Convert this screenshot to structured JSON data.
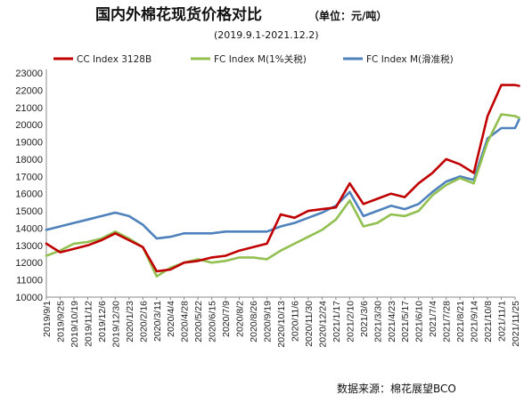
{
  "chart_data": {
    "type": "line",
    "title": "国内外棉花现货价格对比",
    "unit_label": "（单位：元/吨）",
    "subtitle": "(2019.9.1-2021.12.2)",
    "source": "数据来源：棉花展望BCO",
    "xlabel": "",
    "ylabel": "",
    "ylim": [
      10000,
      23000
    ],
    "yticks": [
      10000,
      11000,
      12000,
      13000,
      14000,
      15000,
      16000,
      17000,
      18000,
      19000,
      20000,
      21000,
      22000,
      23000
    ],
    "x_labels": [
      "2019/9/1",
      "2019/9/25",
      "2019/10/19",
      "2019/11/12",
      "2019/12/6",
      "2019/12/30",
      "2020/1/23",
      "2020/2/16",
      "2020/3/11",
      "2020/4/4",
      "2020/4/28",
      "2020/5/22",
      "2020/6/15",
      "2020/7/9",
      "2020/8/2",
      "2020/8/26",
      "2020/9/19",
      "2020/10/13",
      "2020/11/6",
      "2020/11/30",
      "2020/12/24",
      "2021/1/17",
      "2021/2/10",
      "2021/3/6",
      "2021/3/30",
      "2021/4/23",
      "2021/5/17",
      "2021/6/10",
      "2021/7/4",
      "2021/7/28",
      "2021/8/21",
      "2021/9/14",
      "2021/10/8",
      "2021/11/1",
      "2021/11/25"
    ],
    "grid": false,
    "legend": "top",
    "series": [
      {
        "name": "CC Index 3128B",
        "color": "#c00000",
        "x": [
          "2019/9/1",
          "2019/9/25",
          "2019/10/19",
          "2019/11/12",
          "2019/12/6",
          "2019/12/30",
          "2020/1/23",
          "2020/2/16",
          "2020/3/11",
          "2020/4/4",
          "2020/4/28",
          "2020/5/22",
          "2020/6/15",
          "2020/7/9",
          "2020/8/2",
          "2020/8/26",
          "2020/9/19",
          "2020/10/13",
          "2020/11/6",
          "2020/11/30",
          "2020/12/24",
          "2021/1/17",
          "2021/2/10",
          "2021/3/6",
          "2021/3/30",
          "2021/4/23",
          "2021/5/17",
          "2021/6/10",
          "2021/7/4",
          "2021/7/28",
          "2021/8/21",
          "2021/9/14",
          "2021/10/8",
          "2021/11/1",
          "2021/11/25",
          "2021/12/2"
        ],
        "values": [
          13100,
          12600,
          12800,
          13000,
          13300,
          13700,
          13300,
          12900,
          11500,
          11600,
          12000,
          12100,
          12300,
          12400,
          12700,
          12900,
          13100,
          14800,
          14600,
          15000,
          15100,
          15200,
          16600,
          15400,
          15700,
          16000,
          15800,
          16600,
          17200,
          18000,
          17700,
          17200,
          20500,
          22300,
          22300,
          22250
        ]
      },
      {
        "name": "FC Index M(1%关税)",
        "color": "#92c050",
        "x": [
          "2019/9/1",
          "2019/9/25",
          "2019/10/19",
          "2019/11/12",
          "2019/12/6",
          "2019/12/30",
          "2020/1/23",
          "2020/2/16",
          "2020/3/11",
          "2020/4/4",
          "2020/4/28",
          "2020/5/22",
          "2020/6/15",
          "2020/7/9",
          "2020/8/2",
          "2020/8/26",
          "2020/9/19",
          "2020/10/13",
          "2020/11/6",
          "2020/11/30",
          "2020/12/24",
          "2021/1/17",
          "2021/2/10",
          "2021/3/6",
          "2021/3/30",
          "2021/4/23",
          "2021/5/17",
          "2021/6/10",
          "2021/7/4",
          "2021/7/28",
          "2021/8/21",
          "2021/9/14",
          "2021/10/8",
          "2021/11/1",
          "2021/11/25",
          "2021/12/2"
        ],
        "values": [
          12400,
          12700,
          13100,
          13200,
          13400,
          13800,
          13400,
          12900,
          11200,
          11700,
          12000,
          12200,
          12000,
          12100,
          12300,
          12300,
          12200,
          12700,
          13100,
          13500,
          13900,
          14500,
          15600,
          14100,
          14300,
          14800,
          14700,
          15000,
          15900,
          16500,
          16900,
          16600,
          19000,
          20600,
          20500,
          20400
        ]
      },
      {
        "name": "FC Index M(滑准税)",
        "color": "#4f81bd",
        "x": [
          "2019/9/1",
          "2019/9/25",
          "2019/10/19",
          "2019/11/12",
          "2019/12/6",
          "2019/12/30",
          "2020/1/23",
          "2020/2/16",
          "2020/3/11",
          "2020/4/4",
          "2020/4/28",
          "2020/5/22",
          "2020/6/15",
          "2020/7/9",
          "2020/8/2",
          "2020/8/26",
          "2020/9/19",
          "2020/10/13",
          "2020/11/6",
          "2020/11/30",
          "2020/12/24",
          "2021/1/17",
          "2021/2/10",
          "2021/3/6",
          "2021/3/30",
          "2021/4/23",
          "2021/5/17",
          "2021/6/10",
          "2021/7/4",
          "2021/7/28",
          "2021/8/21",
          "2021/9/14",
          "2021/10/8",
          "2021/11/1",
          "2021/11/25",
          "2021/12/2"
        ],
        "values": [
          13900,
          14100,
          14300,
          14500,
          14700,
          14900,
          14700,
          14200,
          13400,
          13500,
          13700,
          13700,
          13700,
          13800,
          13800,
          13800,
          13800,
          14100,
          14300,
          14600,
          14900,
          15300,
          16100,
          14700,
          15000,
          15300,
          15100,
          15400,
          16100,
          16700,
          17000,
          16800,
          19200,
          19800,
          19800,
          20300
        ]
      }
    ]
  }
}
